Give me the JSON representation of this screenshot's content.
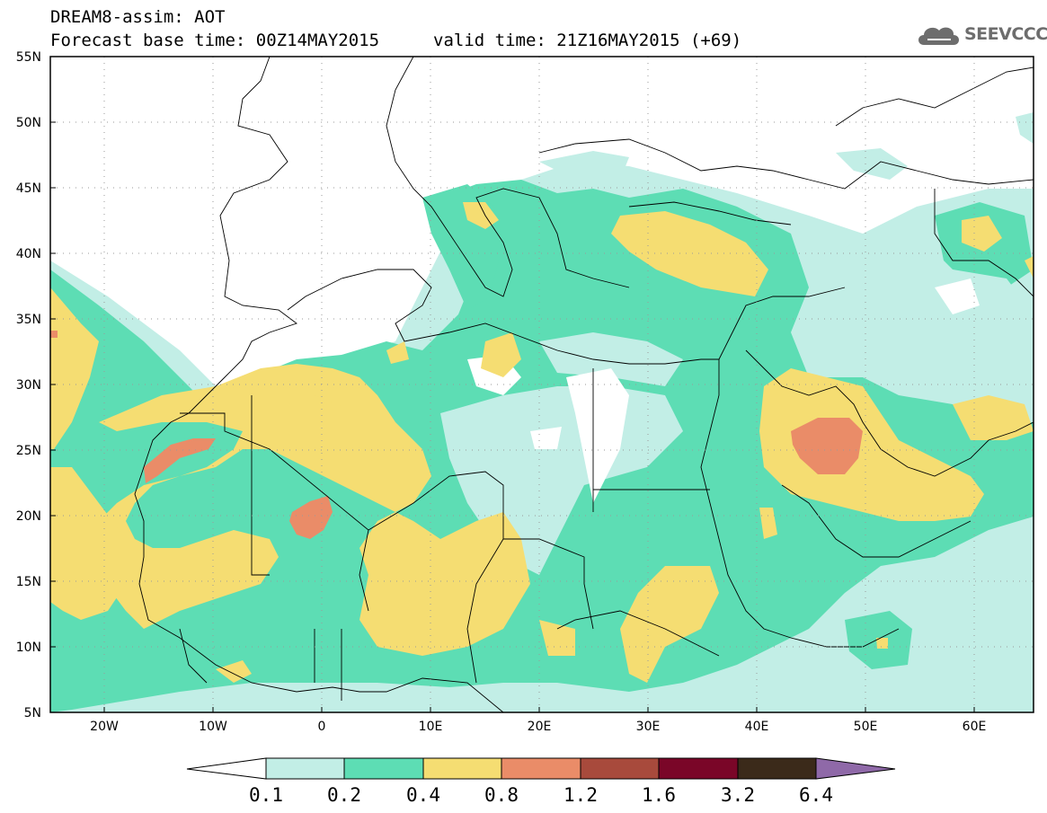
{
  "header": {
    "line1": "DREAM8-assim: AOT",
    "line2_base": "Forecast base time: 00Z14MAY2015",
    "line2_valid": "valid time: 21Z16MAY2015 (+69)"
  },
  "logo": {
    "icon": "cloud-logo-icon",
    "text": "SEEVCCC"
  },
  "map": {
    "lon_range": [
      -25,
      65
    ],
    "lat_range": [
      5,
      55
    ],
    "grid": "dotted",
    "lat_labels": [
      "55N",
      "50N",
      "45N",
      "40N",
      "35N",
      "30N",
      "25N",
      "20N",
      "15N",
      "10N",
      "5N"
    ],
    "lon_labels": [
      "20W",
      "10W",
      "0",
      "10E",
      "20E",
      "30E",
      "40E",
      "50E",
      "60E"
    ]
  },
  "legend": {
    "thresholds": [
      "0.1",
      "0.2",
      "0.4",
      "0.8",
      "1.2",
      "1.6",
      "3.2",
      "6.4"
    ],
    "colors": [
      "#ffffff",
      "#c2eee6",
      "#5dddb4",
      "#f5dd72",
      "#ea8c68",
      "#a84a3c",
      "#7a0628",
      "#3b2a1a",
      "#8f69a8"
    ]
  }
}
